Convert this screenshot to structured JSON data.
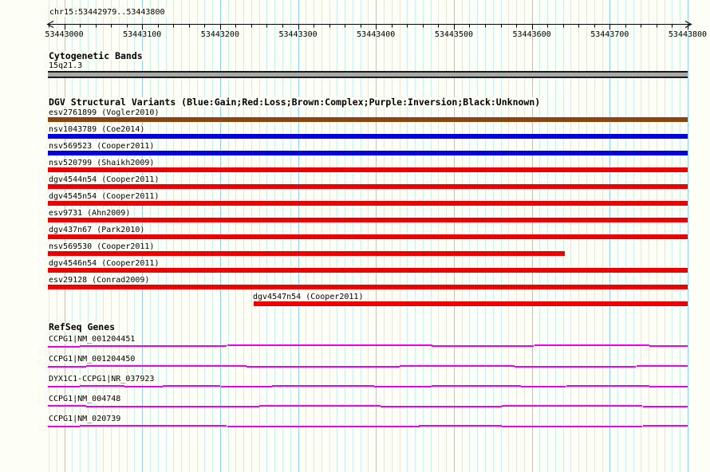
{
  "chart_data": {
    "type": "bar",
    "subtype": "horizontal-genomic-range-tracks",
    "grid": "on",
    "colors": {
      "gain": "#0000E0",
      "loss": "#EE0000",
      "complex": "#8B4513",
      "gene": "#EE00EE",
      "grid_minor": "#C9F0EE",
      "grid_major": "#8ED2EE",
      "cytoband_fill": "#A9A9A9",
      "axis": "#000000",
      "background": "#FDFEF6"
    },
    "ruler": {
      "region_label": "chr15:53442979..53443800",
      "start": 53442979,
      "end": 53443800,
      "grid_minor_step": 10,
      "grid_major_step": 100,
      "tick_step": 20,
      "major_ticks": [
        {
          "pos": 53443000,
          "label": "53443000"
        },
        {
          "pos": 53443100,
          "label": "53443100"
        },
        {
          "pos": 53443200,
          "label": "53443200"
        },
        {
          "pos": 53443300,
          "label": "53443300"
        },
        {
          "pos": 53443400,
          "label": "53443400"
        },
        {
          "pos": 53443500,
          "label": "53443500"
        },
        {
          "pos": 53443600,
          "label": "53443600"
        },
        {
          "pos": 53443700,
          "label": "53443700"
        },
        {
          "pos": 53443800,
          "label": "53443800"
        }
      ]
    },
    "cytogenetic": {
      "header": "Cytogenetic Bands",
      "band_label": "15q21.3",
      "band_start": 53442979,
      "band_end": 53443800
    },
    "dgv": {
      "header": "DGV Structural Variants (Blue:Gain;Red:Loss;Brown:Complex;Purple:Inversion;Black:Unknown)",
      "variants": [
        {
          "label": "esv2761899 (Vogler2010)",
          "type": "complex",
          "start": 53442979,
          "end": 53443800,
          "label_at_start": false
        },
        {
          "label": "nsv1043789 (Coe2014)",
          "type": "gain",
          "start": 53442979,
          "end": 53443800,
          "label_at_start": false
        },
        {
          "label": "nsv569523 (Cooper2011)",
          "type": "gain",
          "start": 53442979,
          "end": 53443800,
          "label_at_start": false
        },
        {
          "label": "nsv520799 (Shaikh2009)",
          "type": "loss",
          "start": 53442979,
          "end": 53443800,
          "label_at_start": false
        },
        {
          "label": "dgv4544n54 (Cooper2011)",
          "type": "loss",
          "start": 53442979,
          "end": 53443800,
          "label_at_start": false
        },
        {
          "label": "dgv4545n54 (Cooper2011)",
          "type": "loss",
          "start": 53442979,
          "end": 53443800,
          "label_at_start": false
        },
        {
          "label": "esv9731 (Ahn2009)",
          "type": "loss",
          "start": 53442979,
          "end": 53443800,
          "label_at_start": false
        },
        {
          "label": "dgv437n67 (Park2010)",
          "type": "loss",
          "start": 53442979,
          "end": 53443800,
          "label_at_start": false
        },
        {
          "label": "nsv569530 (Cooper2011)",
          "type": "loss",
          "start": 53442979,
          "end": 53443642,
          "label_at_start": false
        },
        {
          "label": "dgv4546n54 (Cooper2011)",
          "type": "loss",
          "start": 53442979,
          "end": 53443800,
          "label_at_start": false
        },
        {
          "label": "esv29128 (Conrad2009)",
          "type": "loss",
          "start": 53442979,
          "end": 53443800,
          "label_at_start": false
        },
        {
          "label": "dgv4547n54 (Cooper2011)",
          "type": "loss",
          "start": 53443243,
          "end": 53443800,
          "label_at_start": true
        }
      ]
    },
    "refseq": {
      "header": "RefSeq Genes",
      "genes": [
        {
          "label": "CCPG1|NM_001204451",
          "segments": [
            [
              0,
              0.05,
              2
            ],
            [
              0.05,
              0.28,
              1
            ],
            [
              0.28,
              0.6,
              0
            ],
            [
              0.6,
              0.76,
              1
            ],
            [
              0.76,
              0.94,
              0
            ],
            [
              0.94,
              1,
              1
            ]
          ]
        },
        {
          "label": "CCPG1|NM_001204450",
          "segments": [
            [
              0,
              0.06,
              2
            ],
            [
              0.06,
              0.31,
              1
            ],
            [
              0.31,
              0.55,
              2
            ],
            [
              0.55,
              0.73,
              1
            ],
            [
              0.73,
              0.92,
              2
            ],
            [
              0.92,
              1,
              1
            ]
          ]
        },
        {
          "label": "DYX1C1-CCPG1|NR_037923",
          "segments": [
            [
              0,
              0.05,
              2
            ],
            [
              0.05,
              0.12,
              1
            ],
            [
              0.12,
              0.18,
              2
            ],
            [
              0.18,
              0.27,
              1
            ],
            [
              0.27,
              0.35,
              2
            ],
            [
              0.35,
              0.51,
              1
            ],
            [
              0.51,
              0.6,
              2
            ],
            [
              0.6,
              0.74,
              1
            ],
            [
              0.74,
              0.81,
              2
            ],
            [
              0.81,
              0.94,
              1
            ],
            [
              0.94,
              1,
              2
            ]
          ]
        },
        {
          "label": "CCPG1|NM_004748",
          "segments": [
            [
              0,
              0.06,
              1
            ],
            [
              0.06,
              0.33,
              2
            ],
            [
              0.33,
              0.52,
              1
            ],
            [
              0.52,
              0.71,
              2
            ],
            [
              0.71,
              0.93,
              1
            ],
            [
              0.93,
              1,
              2
            ]
          ]
        },
        {
          "label": "CCPG1|NM_020739",
          "segments": [
            [
              0,
              0.05,
              2
            ],
            [
              0.05,
              0.28,
              1
            ],
            [
              0.28,
              0.58,
              2
            ],
            [
              0.58,
              0.71,
              1
            ],
            [
              0.71,
              0.93,
              2
            ],
            [
              0.93,
              1,
              1
            ]
          ]
        }
      ]
    }
  }
}
